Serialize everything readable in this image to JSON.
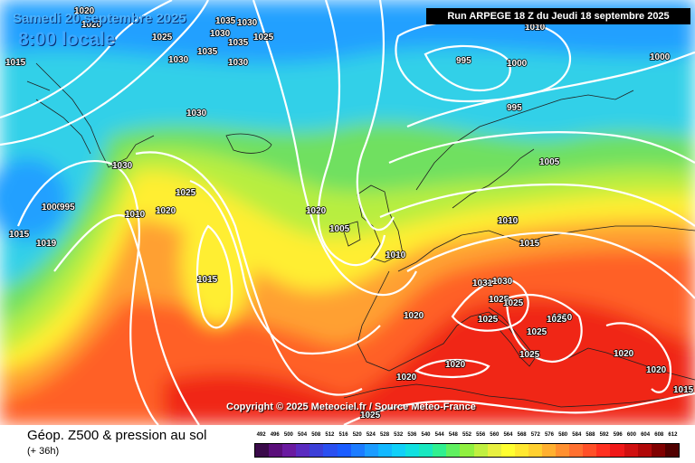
{
  "header": {
    "date": "Samedi 20 septembre 2025",
    "time": "8:00 locale",
    "run": "Run ARPEGE 18 Z du Jeudi 18 septembre 2025"
  },
  "copyright": "Copyright © 2025 Meteociel.fr / Source Meteo-France",
  "legend": {
    "title": "Géop. Z500 & pression au sol",
    "subtitle": "(+ 36h)",
    "scale": [
      "492",
      "496",
      "500",
      "504",
      "508",
      "512",
      "516",
      "520",
      "524",
      "528",
      "532",
      "536",
      "540",
      "544",
      "548",
      "552",
      "556",
      "560",
      "564",
      "568",
      "572",
      "576",
      "580",
      "584",
      "588",
      "592",
      "596",
      "600",
      "604",
      "608",
      "612"
    ],
    "colors": [
      "#3a0a4a",
      "#5a0e7a",
      "#6a1aa0",
      "#5a2bc0",
      "#3c3fd8",
      "#2a4ff0",
      "#1a5cff",
      "#1c7cff",
      "#1c9cff",
      "#12b8ff",
      "#10d0f8",
      "#10e0e0",
      "#18e8c0",
      "#30f090",
      "#60f060",
      "#90f040",
      "#c0f040",
      "#e8f040",
      "#ffff30",
      "#ffe830",
      "#ffd030",
      "#ffb030",
      "#ff9030",
      "#ff7030",
      "#ff5028",
      "#ff3020",
      "#f01818",
      "#d01010",
      "#b00808",
      "#800000",
      "#500000"
    ]
  },
  "map": {
    "colors": {
      "blue": "#20a0ff",
      "cyan": "#30d0e8",
      "green": "#70e060",
      "lime": "#b8ee40",
      "yellow": "#ffee30",
      "orange": "#ffa030",
      "red_orange": "#ff6028",
      "red": "#f02818",
      "isobar": "#ffffff",
      "coast": "#202020"
    },
    "isobar_labels": [
      "1020",
      "1020",
      "1025",
      "1035",
      "1030",
      "1030",
      "1035",
      "1025",
      "1030",
      "1035",
      "1030",
      "1015",
      "1030",
      "995",
      "1000",
      "1010",
      "1000",
      "1015",
      "1030",
      "995",
      "1005",
      "1015",
      "1000",
      "995",
      "1019",
      "1025",
      "1010",
      "1020",
      "1020",
      "1005",
      "1010",
      "1010",
      "1015",
      "1020",
      "1031",
      "1030",
      "1025",
      "1025",
      "1025",
      "1025",
      "1025",
      "1030",
      "1020",
      "1020",
      "1025",
      "1020",
      "1020",
      "1015",
      "1015",
      "1025"
    ],
    "pressure_extremes": [
      {
        "type": "low",
        "value": "995"
      },
      {
        "type": "low",
        "value": "995"
      },
      {
        "type": "high",
        "value": "1031"
      }
    ]
  }
}
